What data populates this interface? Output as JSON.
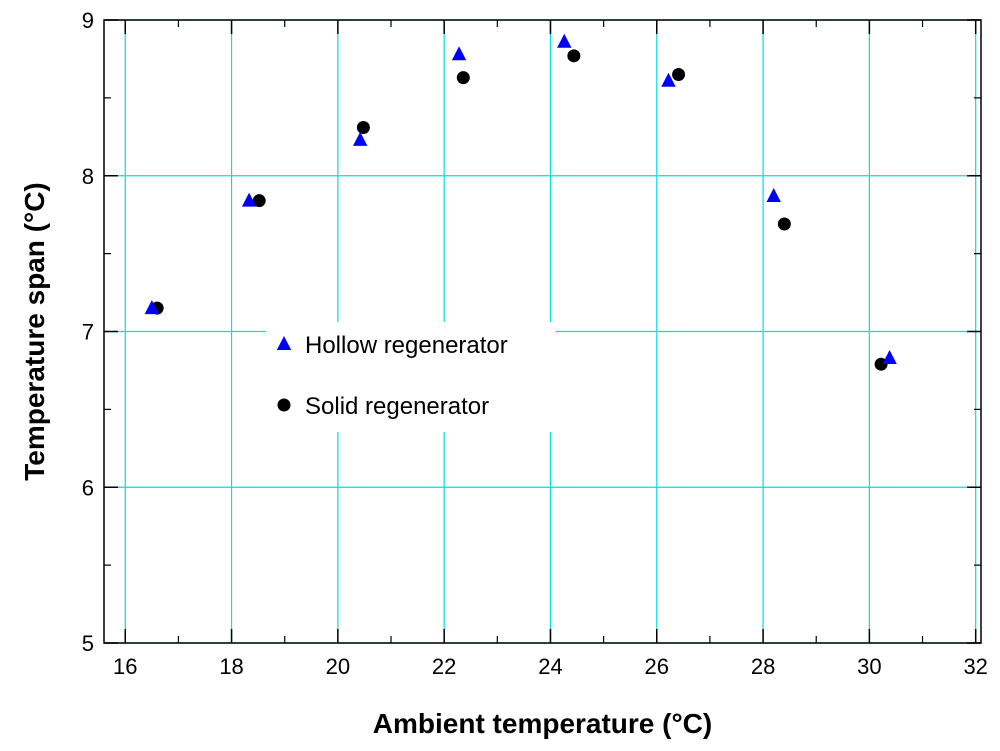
{
  "chart_data": {
    "type": "scatter",
    "title": "",
    "xlabel": "Ambient temperature (°C)",
    "ylabel": "Temperature span (°C)",
    "xlim": [
      15.6,
      32.1
    ],
    "ylim": [
      5,
      9
    ],
    "xticks": [
      16,
      18,
      20,
      22,
      24,
      26,
      28,
      30,
      32
    ],
    "yticks": [
      5,
      6,
      7,
      8,
      9
    ],
    "grid": true,
    "legend_position": "center-left",
    "series": [
      {
        "name": "Hollow regenerator",
        "marker": "triangle",
        "color": "#0000ff",
        "points": [
          [
            16.5,
            7.15
          ],
          [
            18.33,
            7.84
          ],
          [
            20.42,
            8.23
          ],
          [
            22.28,
            8.78
          ],
          [
            24.26,
            8.86
          ],
          [
            26.22,
            8.61
          ],
          [
            28.2,
            7.87
          ],
          [
            30.38,
            6.83
          ]
        ]
      },
      {
        "name": "Solid regenerator",
        "marker": "circle",
        "color": "#000000",
        "points": [
          [
            16.6,
            7.15
          ],
          [
            18.52,
            7.84
          ],
          [
            20.48,
            8.31
          ],
          [
            22.36,
            8.63
          ],
          [
            24.44,
            8.77
          ],
          [
            26.41,
            8.65
          ],
          [
            28.4,
            7.69
          ],
          [
            30.22,
            6.79
          ]
        ]
      }
    ],
    "colors": {
      "grid": "#00e0e0",
      "axis": "#000000"
    }
  }
}
